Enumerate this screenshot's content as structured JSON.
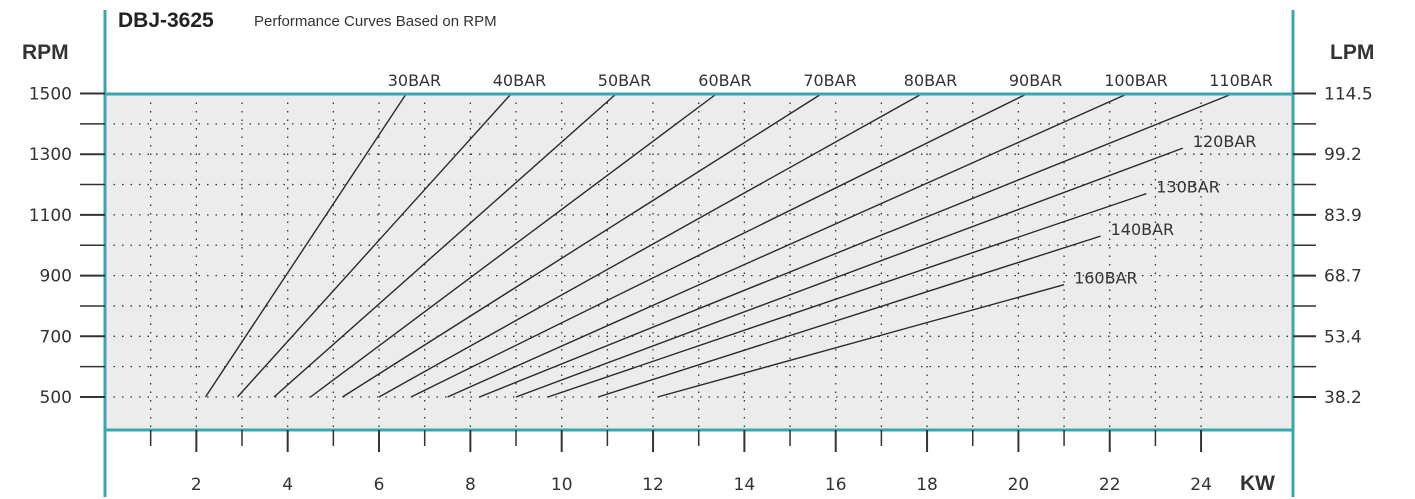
{
  "title": {
    "model": "DBJ-3625",
    "subtitle": "Performance Curves Based on RPM"
  },
  "chart_data": {
    "type": "line",
    "title": "DBJ-3625 Performance Curves Based on RPM",
    "xlabel": "KW",
    "ylabel": "RPM",
    "y2label": "LPM",
    "xlim": [
      0,
      24.5
    ],
    "ylim": [
      400,
      1500
    ],
    "x_ticks": [
      2,
      4,
      6,
      8,
      10,
      12,
      14,
      16,
      18,
      20,
      22,
      24
    ],
    "y_ticks": [
      500,
      700,
      900,
      1100,
      1300,
      1500
    ],
    "y2_ticks": [
      "38.2",
      "53.4",
      "68.7",
      "83.9",
      "99.2",
      "114.5"
    ],
    "grid": true,
    "colors": {
      "axis": "#3aa7b0",
      "plot_bg": "#ececec",
      "grid": "#333333",
      "line": "#2a2a2a",
      "text": "#333333"
    },
    "series": [
      {
        "name": "30BAR",
        "x": [
          2.2,
          6.6
        ],
        "y": [
          500,
          1500
        ]
      },
      {
        "name": "40BAR",
        "x": [
          2.9,
          8.9
        ],
        "y": [
          500,
          1500
        ]
      },
      {
        "name": "50BAR",
        "x": [
          3.7,
          11.2
        ],
        "y": [
          500,
          1500
        ]
      },
      {
        "name": "60BAR",
        "x": [
          4.5,
          13.4
        ],
        "y": [
          500,
          1500
        ]
      },
      {
        "name": "70BAR",
        "x": [
          5.2,
          15.7
        ],
        "y": [
          500,
          1500
        ]
      },
      {
        "name": "80BAR",
        "x": [
          6.0,
          17.9
        ],
        "y": [
          500,
          1500
        ]
      },
      {
        "name": "90BAR",
        "x": [
          6.7,
          20.2
        ],
        "y": [
          500,
          1500
        ]
      },
      {
        "name": "100BAR",
        "x": [
          7.5,
          22.4
        ],
        "y": [
          500,
          1500
        ]
      },
      {
        "name": "110BAR",
        "x": [
          8.2,
          24.7
        ],
        "y": [
          500,
          1500
        ]
      },
      {
        "name": "120BAR",
        "x": [
          9.0,
          23.6
        ],
        "y": [
          500,
          1320
        ]
      },
      {
        "name": "130BAR",
        "x": [
          9.7,
          22.8
        ],
        "y": [
          500,
          1170
        ]
      },
      {
        "name": "140BAR",
        "x": [
          10.8,
          21.8
        ],
        "y": [
          500,
          1030
        ]
      },
      {
        "name": "160BAR",
        "x": [
          12.1,
          21.0
        ],
        "y": [
          500,
          870
        ]
      }
    ]
  }
}
